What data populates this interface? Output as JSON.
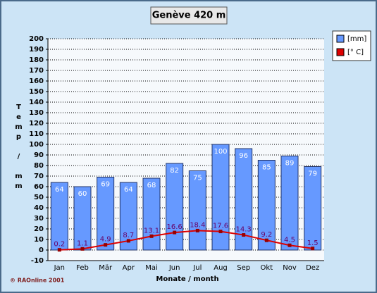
{
  "chart_data": {
    "type": "bar",
    "title": "Genève 420 m",
    "y_label": "Temp / mm",
    "x_label": "Monate / month",
    "source": "© RAOnline 2001",
    "categories": [
      "Jan",
      "Feb",
      "Mär",
      "Apr",
      "Mai",
      "Jun",
      "Jul",
      "Aug",
      "Sep",
      "Okt",
      "Nov",
      "Dez"
    ],
    "series": [
      {
        "name": "[mm]",
        "type": "bar",
        "color": "#6699ff",
        "values": [
          64,
          60,
          69,
          64,
          68,
          82,
          75,
          100,
          96,
          85,
          89,
          79
        ]
      },
      {
        "name": "[° C]",
        "type": "line",
        "color": "#dd0000",
        "values": [
          0.2,
          1.1,
          4.9,
          8.7,
          13.1,
          16.6,
          18.4,
          17.6,
          14.3,
          9.2,
          4.5,
          1.5
        ]
      }
    ],
    "ylim": [
      -10,
      200
    ],
    "yticks": [
      -10,
      0,
      10,
      20,
      30,
      40,
      50,
      60,
      70,
      80,
      90,
      100,
      110,
      120,
      130,
      140,
      150,
      160,
      170,
      180,
      190,
      200
    ],
    "grid": true,
    "legend": "top-right"
  }
}
